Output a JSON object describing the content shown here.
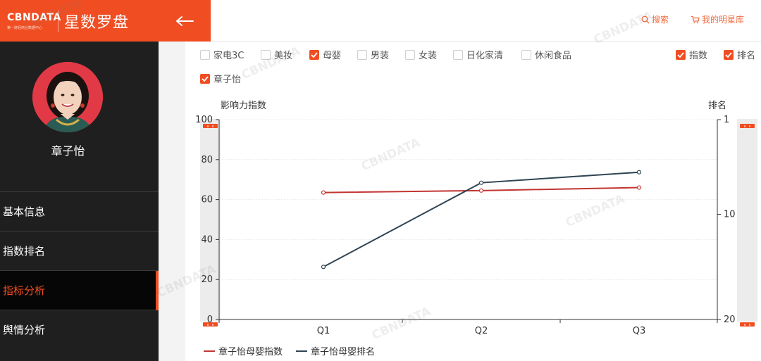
{
  "brand": {
    "logo_text": "CBNDATA",
    "logo_sub": "第一财经商业数据中心",
    "title": "星数罗盘"
  },
  "celebrity": {
    "name": "章子怡"
  },
  "sidebar": {
    "items": [
      {
        "label": "基本信息",
        "active": false
      },
      {
        "label": "指数排名",
        "active": false
      },
      {
        "label": "指标分析",
        "active": true
      },
      {
        "label": "舆情分析",
        "active": false
      }
    ]
  },
  "topbar": {
    "search_label": "搜索",
    "library_label": "我的明星库"
  },
  "filters": {
    "categories": [
      {
        "label": "家电3C",
        "checked": false
      },
      {
        "label": "美妆",
        "checked": false
      },
      {
        "label": "母婴",
        "checked": true
      },
      {
        "label": "男装",
        "checked": false
      },
      {
        "label": "女装",
        "checked": false
      },
      {
        "label": "日化家清",
        "checked": false
      },
      {
        "label": "休闲食品",
        "checked": false
      }
    ],
    "metrics": [
      {
        "label": "指数",
        "checked": true
      },
      {
        "label": "排名",
        "checked": true
      }
    ],
    "celebrities": [
      {
        "label": "章子怡",
        "checked": true
      }
    ]
  },
  "colors": {
    "accent": "#f04d22",
    "index_series": "#c23531",
    "rank_series": "#2f4554",
    "sidebar_bg": "#1f1f1f"
  },
  "chart_data": {
    "type": "line",
    "x": [
      "Q1",
      "Q2",
      "Q3"
    ],
    "y_left": {
      "label": "影响力指数",
      "range": [
        0,
        100
      ],
      "ticks": [
        0,
        20,
        40,
        60,
        80,
        100
      ]
    },
    "y_right": {
      "label": "排名",
      "range": [
        1,
        20
      ],
      "inverted": true,
      "ticks": [
        1,
        10,
        20
      ]
    },
    "series": [
      {
        "name": "章子怡母婴指数",
        "axis": "left",
        "values": [
          63.5,
          64.5,
          66
        ],
        "color": "#c23531"
      },
      {
        "name": "章子怡母婴排名",
        "axis": "right",
        "values": [
          15,
          7,
          6
        ],
        "color": "#2f4554"
      }
    ],
    "grid": true,
    "legend": "bottom-left"
  }
}
